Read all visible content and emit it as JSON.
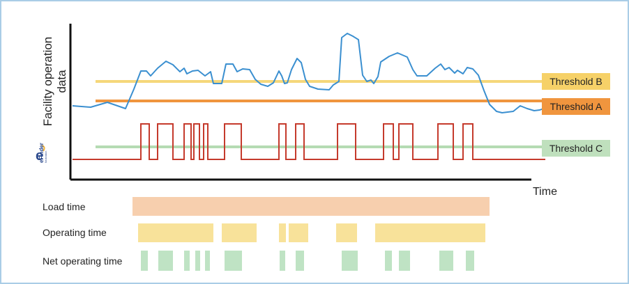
{
  "chart": {
    "ylabel_line1": "Facility operation",
    "ylabel_line2": "data",
    "xlabel": "Time",
    "logo_text": "eFinder",
    "logo_sub": "Nextivation"
  },
  "thresholds": [
    {
      "id": "B",
      "label": "Threshold B",
      "line_color": "#f5d77a",
      "box_color": "#f6d168",
      "text_color": "#222222"
    },
    {
      "id": "A",
      "label": "Threshold A",
      "line_color": "#f0953e",
      "box_color": "#f0953e",
      "text_color": "#ffffff"
    },
    {
      "id": "C",
      "label": "Threshold C",
      "line_color": "#b5dbb3",
      "box_color": "#bfe0bd",
      "text_color": "#222222"
    }
  ],
  "rows": {
    "load_label": "Load time",
    "operating_label": "Operating time",
    "net_label": "Net operating time"
  },
  "colors": {
    "signal": "#3a8fd0",
    "state": "#c53a2c",
    "load": "#f7cfae",
    "operating": "#f8e29a",
    "net": "#bfe3c4",
    "axis": "#111111"
  }
}
